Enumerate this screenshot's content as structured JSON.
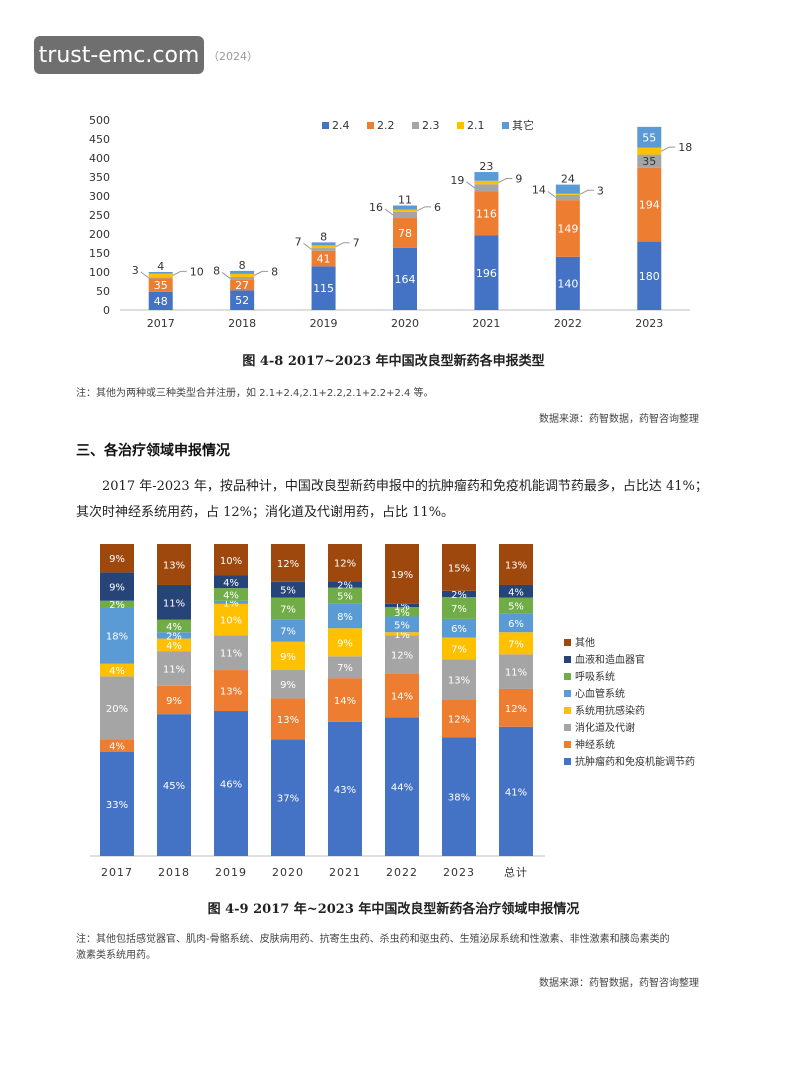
{
  "header": {
    "watermark": "trust-emc.com",
    "year": "（2024）"
  },
  "figure1": {
    "caption": "图 4-8   2017~2023 年中国改良型新药各申报类型",
    "note": "注：其他为两种或三种类型合并注册，如 2.1+2.4,2.1+2.2,2.1+2.2+2.4 等。",
    "source": "数据来源：药智数据，药智咨询整理"
  },
  "section": {
    "title": "三、各治疗领域申报情况"
  },
  "paragraph": {
    "line1": "2017 年-2023 年，按品种计，中国改良型新药申报中的抗肿瘤药和免疫机能调节药最多，占比达 41%；",
    "line2": "其次时神经系统用药，占 12%；消化道及代谢用药，占比 11%。"
  },
  "figure2": {
    "caption": "图 4-9   2017 年~2023 年中国改良型新药各治疗领域申报情况",
    "note_line1": "注：其他包括感觉器官、肌肉-骨骼系统、皮肤病用药、抗寄生虫药、杀虫药和驱虫药、生殖泌尿系统和性激素、非性激素和胰岛素类的",
    "note_line2": "激素类系统用药。",
    "source": "数据来源：药智数据，药智咨询整理"
  },
  "chart_data": [
    {
      "type": "bar",
      "stacked": true,
      "categories": [
        "2017",
        "2018",
        "2019",
        "2020",
        "2021",
        "2022",
        "2023"
      ],
      "series": [
        {
          "name": "2.4",
          "color": "#4472c4",
          "values": [
            48,
            52,
            115,
            164,
            196,
            140,
            180
          ]
        },
        {
          "name": "2.2",
          "color": "#ed7d31",
          "values": [
            35,
            27,
            41,
            78,
            116,
            149,
            194
          ]
        },
        {
          "name": "2.3",
          "color": "#a5a5a5",
          "values": [
            3,
            8,
            7,
            16,
            19,
            14,
            35
          ]
        },
        {
          "name": "2.1",
          "color": "#ffc000",
          "values": [
            10,
            8,
            7,
            6,
            9,
            3,
            18
          ]
        },
        {
          "name": "其它",
          "color": "#5b9bd5",
          "values": [
            4,
            8,
            8,
            11,
            23,
            24,
            55
          ]
        }
      ],
      "ylim": [
        0,
        500
      ],
      "yticks": [
        0,
        50,
        100,
        150,
        200,
        250,
        300,
        350,
        400,
        450,
        500
      ],
      "legend": "top"
    },
    {
      "type": "bar",
      "stacked": true,
      "percent": true,
      "categories": [
        "2017",
        "2018",
        "2019",
        "2020",
        "2021",
        "2022",
        "2023",
        "总计"
      ],
      "series": [
        {
          "name": "抗肿瘤药和免疫机能调节药",
          "color": "#4472c4",
          "values": [
            33,
            45,
            46,
            37,
            43,
            44,
            38,
            41
          ]
        },
        {
          "name": "神经系统",
          "color": "#ed7d31",
          "values": [
            4,
            9,
            13,
            13,
            14,
            14,
            12,
            12
          ]
        },
        {
          "name": "消化道及代谢",
          "color": "#a5a5a5",
          "values": [
            20,
            11,
            11,
            9,
            7,
            12,
            13,
            11
          ]
        },
        {
          "name": "系统用抗感染药",
          "color": "#ffc000",
          "values": [
            4,
            4,
            10,
            9,
            9,
            1,
            7,
            7
          ]
        },
        {
          "name": "心血管系统",
          "color": "#5b9bd5",
          "values": [
            18,
            2,
            1,
            7,
            8,
            5,
            6,
            6
          ]
        },
        {
          "name": "呼吸系统",
          "color": "#70ad47",
          "values": [
            2,
            4,
            4,
            7,
            5,
            3,
            7,
            5
          ]
        },
        {
          "name": "血液和造血器官",
          "color": "#264478",
          "values": [
            9,
            11,
            4,
            5,
            2,
            1,
            2,
            4
          ]
        },
        {
          "name": "其他",
          "color": "#9e480e",
          "values": [
            9,
            13,
            10,
            12,
            12,
            19,
            15,
            13
          ]
        }
      ],
      "legend": "right"
    }
  ]
}
